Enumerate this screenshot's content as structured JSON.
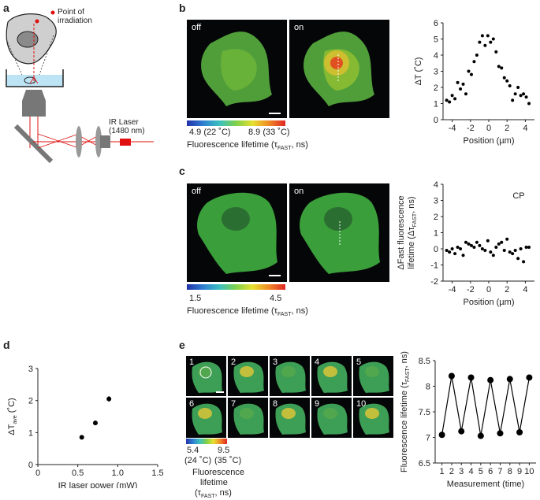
{
  "panels": {
    "a": {
      "letter": "a",
      "point_label": "Point of\nirradiation",
      "laser_label": "IR Laser\n(1480 nm)"
    },
    "b": {
      "letter": "b",
      "image_off": "off",
      "image_on": "on",
      "cbar_min": "4.9 (22 ˚C)",
      "cbar_max": "8.9 (33 ˚C)",
      "cbar_caption": "Fluorescence lifetime (τ",
      "cbar_caption_sub": "FAST",
      "cbar_caption_end": ", ns)"
    },
    "c": {
      "letter": "c",
      "image_off": "off",
      "image_on": "on",
      "cbar_min": "1.5",
      "cbar_max": "4.5",
      "cbar_caption": "Fluorescence lifetime (τ",
      "cbar_caption_sub": "FAST",
      "cbar_caption_end": ", ns)"
    },
    "d": {
      "letter": "d"
    },
    "e": {
      "letter": "e",
      "tiles": [
        "1",
        "2",
        "3",
        "4",
        "5",
        "6",
        "7",
        "8",
        "9",
        "10"
      ],
      "cbar_min": "5.4",
      "cbar_max": "9.5",
      "cbar_min_temp": "(24 ˚C)",
      "cbar_max_temp": "(35 ˚C)",
      "cbar_caption_line1": "Fluorescence",
      "cbar_caption_line2": "lifetime",
      "cbar_caption_line3": "(τ",
      "cbar_caption_sub": "FAST",
      "cbar_caption_end": ", ns)"
    }
  },
  "chart_data": [
    {
      "id": "b-chart",
      "type": "scatter",
      "xlabel": "Position (µm)",
      "ylabel": "ΔT (˚C)",
      "xlim": [
        -5,
        5
      ],
      "ylim": [
        0,
        6
      ],
      "xticks": [
        -4,
        -2,
        0,
        2,
        4
      ],
      "yticks": [
        0,
        1,
        2,
        3,
        4,
        5,
        6
      ],
      "x": [
        -4.6,
        -4.3,
        -4.0,
        -3.7,
        -3.4,
        -3.1,
        -2.8,
        -2.5,
        -2.2,
        -1.9,
        -1.6,
        -1.3,
        -1.0,
        -0.7,
        -0.4,
        -0.1,
        0.2,
        0.5,
        0.8,
        1.1,
        1.4,
        1.7,
        2.0,
        2.3,
        2.6,
        2.9,
        3.2,
        3.5,
        3.8,
        4.1,
        4.4
      ],
      "y": [
        1.2,
        1.1,
        1.5,
        1.3,
        2.3,
        1.9,
        2.2,
        1.6,
        3.0,
        2.8,
        3.6,
        4.0,
        4.8,
        5.2,
        4.6,
        5.2,
        4.8,
        5.0,
        4.2,
        3.3,
        3.2,
        2.6,
        2.4,
        2.1,
        1.2,
        1.6,
        2.0,
        1.5,
        1.6,
        1.4,
        1.0
      ]
    },
    {
      "id": "c-chart",
      "type": "scatter",
      "annotation": "CP",
      "xlabel": "Position (µm)",
      "ylabel": "ΔFast fluorescence",
      "ylabel2": "lifetime (Δτ",
      "ylabel2_sub": "FAST",
      "ylabel2_end": ", ns)",
      "xlim": [
        -5,
        5
      ],
      "ylim": [
        -2,
        4
      ],
      "xticks": [
        -4,
        -2,
        0,
        2,
        4
      ],
      "yticks": [
        -2,
        -1,
        0,
        1,
        2,
        3,
        4
      ],
      "x": [
        -4.6,
        -4.3,
        -4.0,
        -3.7,
        -3.4,
        -3.1,
        -2.8,
        -2.5,
        -2.2,
        -1.9,
        -1.6,
        -1.3,
        -1.0,
        -0.7,
        -0.4,
        -0.1,
        0.2,
        0.5,
        0.8,
        1.1,
        1.4,
        1.7,
        2.0,
        2.3,
        2.6,
        2.9,
        3.2,
        3.5,
        3.8,
        4.1,
        4.4
      ],
      "y": [
        -0.1,
        -0.2,
        0.0,
        -0.3,
        0.1,
        0.0,
        -0.4,
        0.4,
        0.3,
        0.2,
        0.1,
        0.4,
        0.2,
        0.0,
        -0.1,
        0.5,
        -0.2,
        -0.4,
        0.1,
        0.3,
        0.4,
        -0.1,
        0.6,
        -0.2,
        -0.3,
        -0.1,
        -0.6,
        0.0,
        -0.8,
        0.1,
        0.1
      ]
    },
    {
      "id": "d-chart",
      "type": "scatter",
      "xlabel": "IR laser power (mW)",
      "ylabel": "ΔT",
      "ylabel_sub": "ave",
      "ylabel_end": " (˚C)",
      "xlim": [
        0,
        1.5
      ],
      "ylim": [
        0,
        3
      ],
      "xticks": [
        0,
        0.5,
        1.0,
        1.5
      ],
      "xtick_labels": [
        "0",
        "0.5",
        "1.0",
        "1.5"
      ],
      "yticks": [
        0,
        1,
        2,
        3
      ],
      "x": [
        0.55,
        0.72,
        0.89
      ],
      "y": [
        0.85,
        1.3,
        2.05
      ],
      "yerr": [
        0.03,
        0.05,
        0.09
      ]
    },
    {
      "id": "e-chart",
      "type": "line",
      "xlabel": "Measurement (time)",
      "ylabel": "Fluorescence lifetime (τ",
      "ylabel_sub": "FAST",
      "ylabel_end": ", ns)",
      "xlim": [
        0.3,
        10.7
      ],
      "ylim": [
        6.5,
        8.5
      ],
      "xticks": [
        1,
        2,
        3,
        4,
        5,
        6,
        7,
        8,
        9,
        10
      ],
      "yticks": [
        6.5,
        7,
        7.5,
        8,
        8.5
      ],
      "x": [
        1,
        2,
        3,
        4,
        5,
        6,
        7,
        8,
        9,
        10
      ],
      "y": [
        7.05,
        8.2,
        7.12,
        8.17,
        7.03,
        8.12,
        7.08,
        8.14,
        7.1,
        8.17
      ]
    }
  ]
}
